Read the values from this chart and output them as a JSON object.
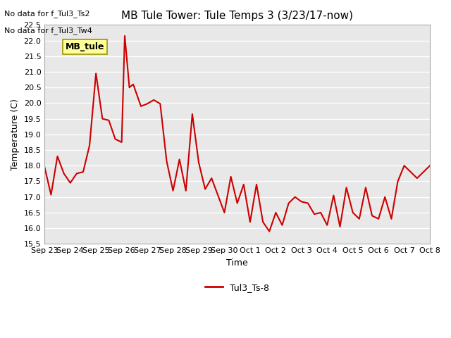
{
  "title": "MB Tule Tower: Tule Temps 3 (3/23/17-now)",
  "xlabel": "Time",
  "ylabel": "Temperature (C)",
  "ylim": [
    15.5,
    22.5
  ],
  "line_color": "#cc0000",
  "line_width": 1.5,
  "legend_label": "Tul3_Ts-8",
  "annotation1": "No data for f_Tul3_Ts2",
  "annotation2": "No data for f_Tul3_Tw4",
  "legend_box_label": "MB_tule",
  "legend_box_color": "#ffff99",
  "legend_box_edge": "#999900",
  "bg_color": "#e8e8e8",
  "grid_color": "#ffffff",
  "x_tick_labels": [
    "Sep 23",
    "Sep 24",
    "Sep 25",
    "Sep 26",
    "Sep 27",
    "Sep 28",
    "Sep 29",
    "Sep 30",
    "Oct 1",
    "Oct 2",
    "Oct 3",
    "Oct 4",
    "Oct 5",
    "Oct 6",
    "Oct 7",
    "Oct 8"
  ],
  "x_data": [
    0.0,
    0.25,
    0.5,
    0.75,
    1.0,
    1.25,
    1.5,
    1.75,
    2.0,
    2.25,
    2.5,
    2.75,
    3.0,
    3.12,
    3.3,
    3.45,
    3.6,
    3.75,
    4.0,
    4.25,
    4.5,
    4.75,
    5.0,
    5.25,
    5.5,
    5.75,
    6.0,
    6.25,
    6.5,
    7.0,
    7.25,
    7.5,
    7.75,
    8.0,
    8.25,
    8.5,
    8.75,
    9.0,
    9.25,
    9.5,
    9.75,
    10.0,
    10.25,
    10.5,
    10.75,
    11.0,
    11.25,
    11.5,
    11.75,
    12.0,
    12.25,
    12.5,
    12.75,
    13.0,
    13.25,
    13.5,
    13.75,
    14.0,
    14.5,
    15.0
  ],
  "y_data": [
    17.95,
    17.07,
    18.3,
    17.75,
    17.45,
    17.75,
    17.8,
    18.65,
    20.95,
    19.5,
    19.45,
    18.85,
    18.75,
    22.15,
    20.5,
    20.6,
    20.25,
    19.9,
    19.98,
    20.1,
    19.98,
    18.15,
    17.2,
    18.2,
    17.2,
    19.65,
    18.1,
    17.25,
    17.6,
    16.5,
    17.65,
    16.8,
    17.4,
    16.2,
    17.4,
    16.2,
    15.9,
    16.5,
    16.1,
    16.8,
    17.0,
    16.85,
    16.8,
    16.45,
    16.5,
    16.1,
    17.05,
    16.05,
    17.3,
    16.5,
    16.3,
    17.3,
    16.4,
    16.3,
    17.0,
    16.3,
    17.5,
    18.0,
    17.6,
    18.0
  ]
}
